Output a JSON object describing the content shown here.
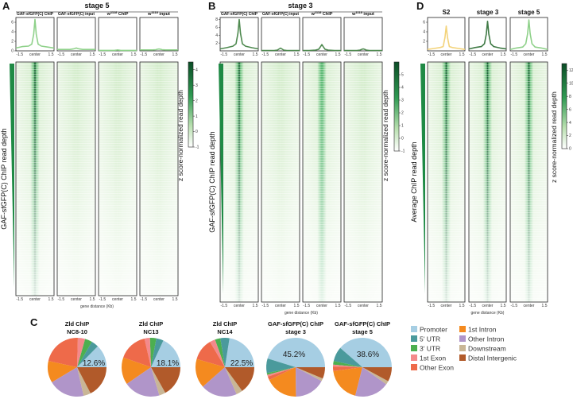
{
  "colors": {
    "Promoter": "#a6cee3",
    "5' UTR": "#4a9a9c",
    "3' UTR": "#4caf50",
    "1st Exon": "#f4898b",
    "Other Exon": "#ee6a4a",
    "1st Intron": "#f48a1f",
    "Other Intron": "#b095c9",
    "Downstream": "#c9b696",
    "Distal Intergenic": "#b15a2a",
    "heat_dark": "#0b4d26",
    "heat_light": "#f3faf0"
  },
  "chart_data": [
    {
      "type": "heatmap",
      "letter": "A",
      "title": "stage 5",
      "row_label": "GAF-sfGFP(C) ChIP read  depth",
      "colorbar": {
        "label": "z score-normalized read depth",
        "ticks": [
          "4",
          "3",
          "2",
          "1",
          "0",
          "-1"
        ],
        "range": [
          -1,
          4.5
        ]
      },
      "x_ticks": [
        "-1.5",
        "center",
        "1.5"
      ],
      "xlabel": "gene distance (Kb)",
      "profile_x": [
        -1.5,
        -1,
        -0.5,
        -0.25,
        -0.1,
        0,
        0.1,
        0.25,
        0.5,
        1,
        1.5
      ],
      "profile_ylim": [
        0,
        7
      ],
      "profile_yticks": [
        "0",
        "2",
        "4",
        "6"
      ],
      "columns": [
        {
          "title": "GAF-sfGFP(C) ChIP",
          "sup": "",
          "rest": "",
          "color": "#8fd18a",
          "center_intensity": 1.0,
          "profile": [
            0.6,
            0.9,
            1.0,
            1.4,
            3.5,
            6.6,
            3.5,
            1.4,
            1.0,
            0.8,
            0.6
          ]
        },
        {
          "title": "GAF-sfGFP(C) input",
          "sup": "",
          "rest": "",
          "color": "#8fd18a",
          "center_intensity": 0.05,
          "profile": [
            0.3,
            0.3,
            0.3,
            0.4,
            0.5,
            0.6,
            0.5,
            0.4,
            0.3,
            0.3,
            0.3
          ]
        },
        {
          "title": "w",
          "sup": "1118",
          "rest": " ChIP",
          "color": "#8fd18a",
          "center_intensity": 0.03,
          "profile": [
            0.1,
            0.1,
            0.1,
            0.1,
            0.15,
            0.2,
            0.15,
            0.1,
            0.1,
            0.1,
            0.1
          ]
        },
        {
          "title": "w",
          "sup": "1118",
          "rest": " input",
          "color": "#8fd18a",
          "center_intensity": 0.04,
          "profile": [
            0.2,
            0.2,
            0.2,
            0.25,
            0.35,
            0.4,
            0.35,
            0.25,
            0.2,
            0.2,
            0.2
          ]
        }
      ]
    },
    {
      "type": "heatmap",
      "letter": "B",
      "title": "stage 3",
      "row_label": "GAF-sfGFP(C) ChIP read  depth",
      "colorbar": {
        "label": "z score-normalized read depth",
        "ticks": [
          "5",
          "4",
          "3",
          "2",
          "1",
          "0",
          "-1"
        ],
        "range": [
          -1,
          6
        ]
      },
      "x_ticks": [
        "-1.5",
        "center",
        "1.5"
      ],
      "xlabel": "gene distance (Kb)",
      "profile_x": [
        -1.5,
        -1,
        -0.5,
        -0.25,
        -0.1,
        0,
        0.1,
        0.25,
        0.5,
        1,
        1.5
      ],
      "profile_ylim": [
        0,
        8.5
      ],
      "profile_yticks": [
        "2",
        "4",
        "6",
        "8"
      ],
      "columns": [
        {
          "title": "GAF-sfGFP(C) ChIP",
          "sup": "",
          "rest": "",
          "color": "#4f8a50",
          "center_intensity": 1.0,
          "profile": [
            0.5,
            0.8,
            1.2,
            1.8,
            4.5,
            8.0,
            4.5,
            1.8,
            1.2,
            0.8,
            0.5
          ]
        },
        {
          "title": "GAF-sfGFP(C) input",
          "sup": "",
          "rest": "",
          "color": "#4f8a50",
          "center_intensity": 0.06,
          "profile": [
            0.1,
            0.1,
            0.1,
            0.2,
            0.5,
            0.7,
            0.5,
            0.2,
            0.1,
            0.1,
            0.1
          ]
        },
        {
          "title": "w",
          "sup": "1118",
          "rest": " ChIP",
          "color": "#4f8a50",
          "center_intensity": 0.35,
          "profile": [
            0.1,
            0.1,
            0.2,
            0.4,
            1.1,
            1.6,
            1.1,
            0.4,
            0.2,
            0.1,
            0.1
          ]
        },
        {
          "title": "w",
          "sup": "1118",
          "rest": " input",
          "color": "#4f8a50",
          "center_intensity": 0.05,
          "profile": [
            0.1,
            0.1,
            0.1,
            0.2,
            0.4,
            0.5,
            0.4,
            0.2,
            0.1,
            0.1,
            0.1
          ]
        }
      ]
    },
    {
      "type": "heatmap",
      "letter": "D",
      "title": "",
      "row_label": "Average ChIP read depth",
      "colorbar": {
        "label": "z score-normalized read depth",
        "ticks": [
          "12",
          "10",
          "8",
          "6",
          "4",
          "2",
          "0"
        ],
        "range": [
          0,
          13
        ]
      },
      "x_ticks": [
        "-1.5",
        "center",
        "1.5"
      ],
      "xlabel": "gene distance (Kb)",
      "profile_x": [
        -1.5,
        -1,
        -0.5,
        -0.25,
        -0.1,
        0,
        0.1,
        0.25,
        0.5,
        1,
        1.5
      ],
      "profile_ylim": [
        0,
        7
      ],
      "profile_yticks": [
        "2",
        "4",
        "6"
      ],
      "columns": [
        {
          "title": "S2",
          "sup": "",
          "rest": "",
          "color": "#f3d37a",
          "center_intensity": 0.75,
          "profile": [
            0.3,
            0.5,
            0.7,
            0.9,
            2.8,
            5.2,
            2.8,
            0.9,
            0.7,
            0.5,
            0.3
          ]
        },
        {
          "title": "stage 3",
          "sup": "",
          "rest": "",
          "color": "#3f7a45",
          "center_intensity": 0.8,
          "profile": [
            0.4,
            0.7,
            0.9,
            1.5,
            3.5,
            6.2,
            3.5,
            1.5,
            0.9,
            0.6,
            0.4
          ]
        },
        {
          "title": "stage 5",
          "sup": "",
          "rest": "",
          "color": "#8fd18a",
          "center_intensity": 0.8,
          "profile": [
            0.3,
            0.6,
            0.8,
            1.5,
            3.6,
            6.5,
            3.6,
            1.5,
            0.8,
            0.6,
            0.3
          ]
        }
      ]
    },
    {
      "type": "pie",
      "letter": "C",
      "categories": [
        "Promoter",
        "5' UTR",
        "3' UTR",
        "1st Exon",
        "Other Exon",
        "1st Intron",
        "Other Intron",
        "Downstream",
        "Distal Intergenic"
      ],
      "legend_columns": [
        [
          "Promoter",
          "5' UTR",
          "3' UTR",
          "1st Exon",
          "Other Exon"
        ],
        [
          "1st Intron",
          "Other Intron",
          "Downstream",
          "Distal Intergenic"
        ]
      ],
      "pies": [
        {
          "title": [
            "Zld ChIP",
            "NC8-10"
          ],
          "label": "12.6%",
          "values": [
            12.6,
            4,
            4,
            4,
            22,
            12,
            20,
            4,
            17.4
          ]
        },
        {
          "title": [
            "Zld ChIP",
            "NC13"
          ],
          "label": "18.1%",
          "values": [
            18.1,
            4,
            3.5,
            3,
            16,
            15,
            20,
            3.5,
            16.9
          ]
        },
        {
          "title": [
            "Zld ChIP",
            "NC14"
          ],
          "label": "22.5%",
          "values": [
            22.5,
            5,
            3,
            3,
            12,
            16,
            20,
            3.5,
            15
          ]
        },
        {
          "title": [
            "GAF-sfGFP(C) ChIP",
            "stage 3"
          ],
          "label": "45.2%",
          "values": [
            45.2,
            8,
            1,
            1,
            2,
            18,
            17,
            1.5,
            6.3
          ]
        },
        {
          "title": [
            "GAF-sfGFP(C) ChIP",
            "stage 5"
          ],
          "label": "38.6%",
          "values": [
            38.6,
            8,
            2,
            1,
            2.5,
            19,
            19,
            2,
            7.9
          ]
        }
      ]
    }
  ]
}
